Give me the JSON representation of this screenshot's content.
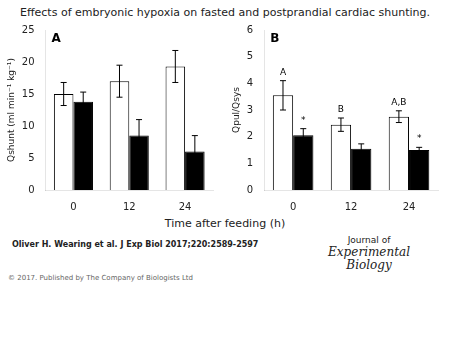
{
  "title": "Effects of embryonic hypoxia on fasted and postprandial cardiac shunting.",
  "xlabel": "Time after feeding (h)",
  "annotations": [
    "Oliver H. Wearing et al. J Exp Biol 2017;220:2589-2597",
    "Journal of",
    "Experimental",
    "Biology",
    "© 2017. Published by The Company of Biologists Ltd"
  ],
  "chart_data": [
    {
      "type": "bar",
      "annotations": [
        "A"
      ],
      "ylabel": "Qshunt (ml min⁻¹ kg⁻¹)",
      "categories": [
        "0",
        "12",
        "24"
      ],
      "ylim": [
        0,
        25
      ],
      "yticks": [
        0,
        5,
        10,
        15,
        20,
        25
      ],
      "grid": false,
      "series": [
        {
          "color": "white",
          "values": [
            15.0,
            17.0,
            19.3
          ],
          "errors": [
            1.8,
            2.5,
            2.5
          ],
          "bar_labels": [
            null,
            null,
            null
          ]
        },
        {
          "color": "black",
          "values": [
            13.8,
            8.5,
            6.0
          ],
          "errors": [
            1.5,
            2.5,
            2.5
          ],
          "bar_labels": [
            null,
            null,
            null
          ]
        }
      ]
    },
    {
      "type": "bar",
      "annotations": [
        "B"
      ],
      "ylabel": "Qpul/Qsys",
      "categories": [
        "0",
        "12",
        "24"
      ],
      "ylim": [
        0,
        6
      ],
      "yticks": [
        0,
        1,
        2,
        3,
        4,
        5,
        6
      ],
      "grid": false,
      "series": [
        {
          "color": "white",
          "values": [
            3.55,
            2.45,
            2.75
          ],
          "errors": [
            0.55,
            0.25,
            0.22
          ],
          "bar_labels": [
            "A",
            "B",
            "A,B"
          ]
        },
        {
          "color": "black",
          "values": [
            2.05,
            1.55,
            1.5
          ],
          "errors": [
            0.25,
            0.18,
            0.1
          ],
          "bar_labels": [
            "*",
            null,
            "*"
          ]
        }
      ]
    }
  ]
}
